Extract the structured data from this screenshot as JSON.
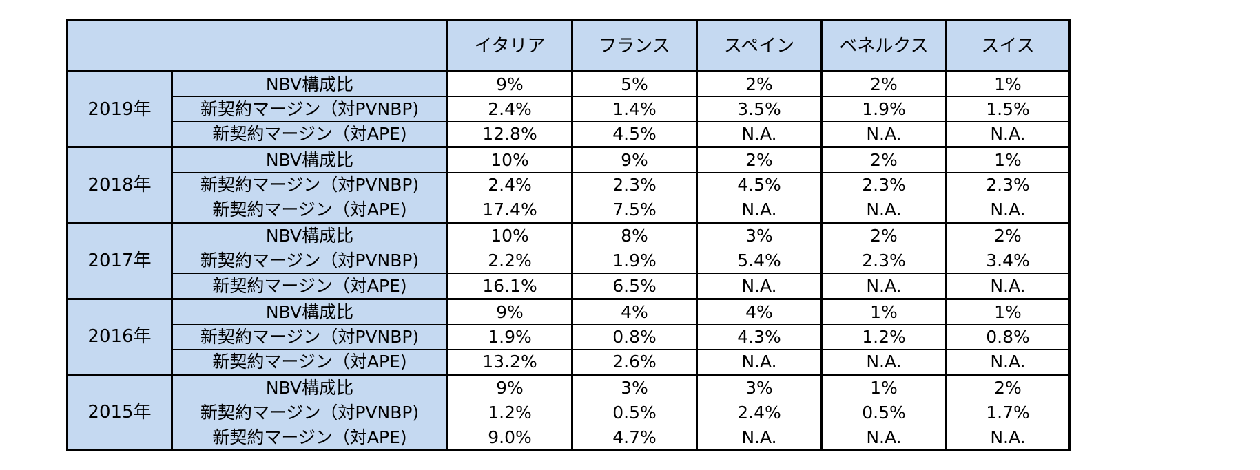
{
  "table": {
    "columns": [
      "イタリア",
      "フランス",
      "スペイン",
      "ベネルクス",
      "スイス"
    ],
    "metrics": [
      "NBV構成比",
      "新契約マージン（対PVNBP)",
      "新契約マージン（対APE)"
    ],
    "groups": [
      {
        "year": "2019年",
        "rows": [
          [
            "9%",
            "5%",
            "2%",
            "2%",
            "1%"
          ],
          [
            "2.4%",
            "1.4%",
            "3.5%",
            "1.9%",
            "1.5%"
          ],
          [
            "12.8%",
            "4.5%",
            "N.A.",
            "N.A.",
            "N.A."
          ]
        ]
      },
      {
        "year": "2018年",
        "rows": [
          [
            "10%",
            "9%",
            "2%",
            "2%",
            "1%"
          ],
          [
            "2.4%",
            "2.3%",
            "4.5%",
            "2.3%",
            "2.3%"
          ],
          [
            "17.4%",
            "7.5%",
            "N.A.",
            "N.A.",
            "N.A."
          ]
        ]
      },
      {
        "year": "2017年",
        "rows": [
          [
            "10%",
            "8%",
            "3%",
            "2%",
            "2%"
          ],
          [
            "2.2%",
            "1.9%",
            "5.4%",
            "2.3%",
            "3.4%"
          ],
          [
            "16.1%",
            "6.5%",
            "N.A.",
            "N.A.",
            "N.A."
          ]
        ]
      },
      {
        "year": "2016年",
        "rows": [
          [
            "9%",
            "4%",
            "4%",
            "1%",
            "1%"
          ],
          [
            "1.9%",
            "0.8%",
            "4.3%",
            "1.2%",
            "0.8%"
          ],
          [
            "13.2%",
            "2.6%",
            "N.A.",
            "N.A.",
            "N.A."
          ]
        ]
      },
      {
        "year": "2015年",
        "rows": [
          [
            "9%",
            "3%",
            "3%",
            "1%",
            "2%"
          ],
          [
            "1.2%",
            "0.5%",
            "2.4%",
            "0.5%",
            "1.7%"
          ],
          [
            "9.0%",
            "4.7%",
            "N.A.",
            "N.A.",
            "N.A."
          ]
        ]
      }
    ]
  },
  "colors": {
    "header_bg": "#c5d9f1",
    "cell_bg": "#ffffff",
    "border": "#000000"
  }
}
